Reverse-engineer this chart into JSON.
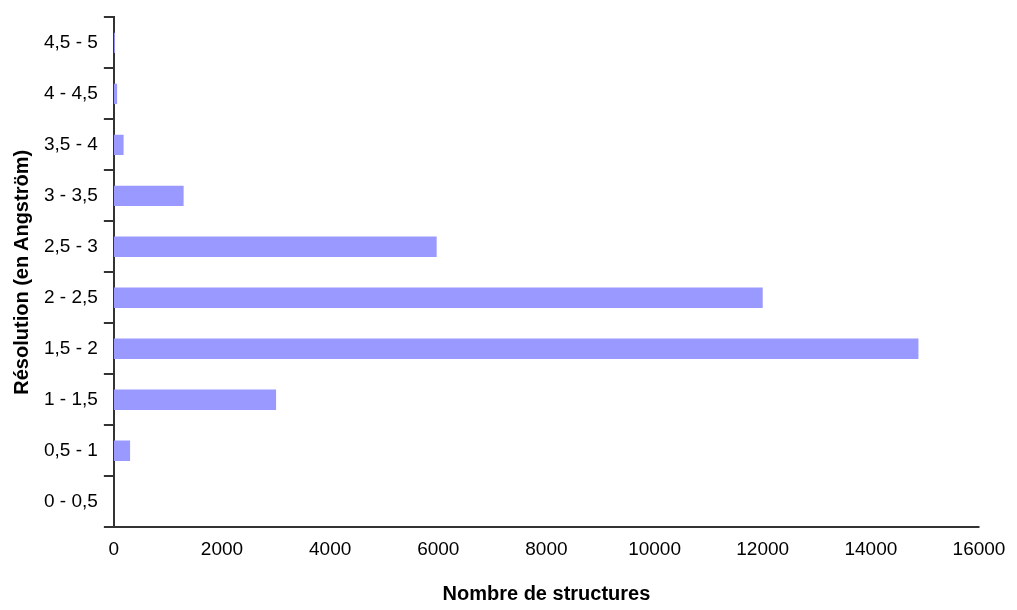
{
  "chart_data": {
    "type": "bar",
    "orientation": "horizontal",
    "xlabel": "Nombre de structures",
    "ylabel": "Résolution (en Angström)",
    "categories": [
      "4,5 - 5",
      "4 - 4,5",
      "3,5 - 4",
      "3 - 3,5",
      "2,5 - 3",
      "2 - 2,5",
      "1,5 - 2",
      "1 - 1,5",
      "0,5 - 1",
      "0 - 0,5"
    ],
    "values": [
      20,
      60,
      180,
      1290,
      5970,
      12000,
      14880,
      3000,
      300,
      0
    ],
    "color": "#9999ff",
    "xlim": [
      0,
      16000
    ],
    "xticks": [
      0,
      2000,
      4000,
      6000,
      8000,
      10000,
      12000,
      14000,
      16000
    ],
    "grid": false,
    "legend": false
  }
}
